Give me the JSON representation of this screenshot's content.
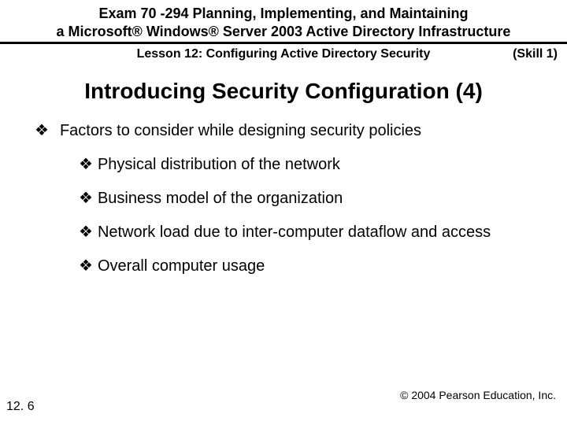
{
  "colors": {
    "text": "#000000",
    "background": "#ffffff",
    "rule": "#000000"
  },
  "typography": {
    "header_fontsize_pt": 14,
    "title_fontsize_pt": 21,
    "body_fontsize_pt": 15,
    "footer_fontsize_pt": 11,
    "font_family": "Arial"
  },
  "header": {
    "line1": "Exam 70 -294 Planning, Implementing, and Maintaining",
    "line2": "a Microsoft® Windows® Server 2003 Active Directory Infrastructure"
  },
  "subheader": {
    "lesson": "Lesson 12: Configuring Active Directory Security",
    "skill": "(Skill 1)"
  },
  "title": "Introducing Security Configuration (4)",
  "bullet_glyph": "❖",
  "body": {
    "main": "Factors to consider while designing security policies",
    "subitems": [
      "Physical distribution of the network",
      "Business model of the organization",
      "Network load due to inter-computer dataflow and access",
      "Overall computer usage"
    ]
  },
  "footer": {
    "page": "12. 6",
    "copyright": "© 2004 Pearson Education, Inc."
  }
}
